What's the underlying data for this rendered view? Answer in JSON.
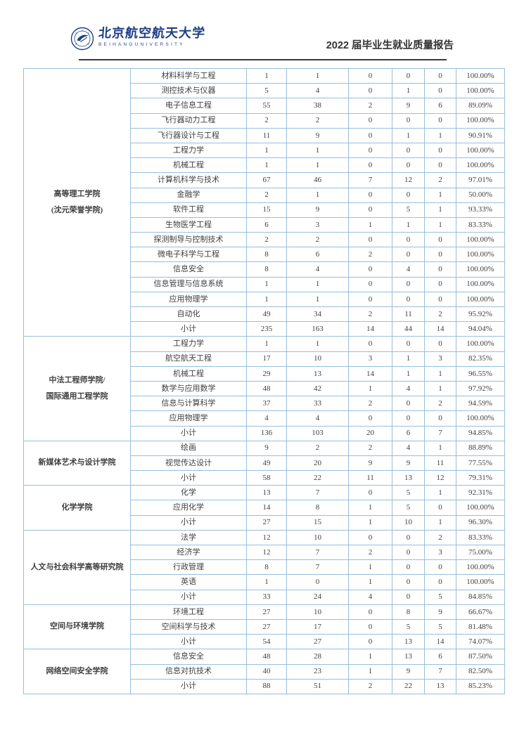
{
  "header": {
    "logo": {
      "cn": "北京航空航天大学",
      "en": "BEIHANGUNIVERSITY"
    },
    "report_title": "2022 届毕业生就业质量报告"
  },
  "colors": {
    "table_border": "#97bedc",
    "table_text": "#3f3f3f",
    "brand_navy": "#1e3e85",
    "header_rule": "#3a3a3a"
  },
  "table": {
    "groups": [
      {
        "college": [
          "高等理工学院",
          "(沈元荣誉学院)"
        ],
        "rows": [
          [
            "材料科学与工程",
            "1",
            "1",
            "0",
            "0",
            "0",
            "100.00%"
          ],
          [
            "测控技术与仪器",
            "5",
            "4",
            "0",
            "1",
            "0",
            "100.00%"
          ],
          [
            "电子信息工程",
            "55",
            "38",
            "2",
            "9",
            "6",
            "89.09%"
          ],
          [
            "飞行器动力工程",
            "2",
            "2",
            "0",
            "0",
            "0",
            "100.00%"
          ],
          [
            "飞行器设计与工程",
            "11",
            "9",
            "0",
            "1",
            "1",
            "90.91%"
          ],
          [
            "工程力学",
            "1",
            "1",
            "0",
            "0",
            "0",
            "100.00%"
          ],
          [
            "机械工程",
            "1",
            "1",
            "0",
            "0",
            "0",
            "100.00%"
          ],
          [
            "计算机科学与技术",
            "67",
            "46",
            "7",
            "12",
            "2",
            "97.01%"
          ],
          [
            "金融学",
            "2",
            "1",
            "0",
            "0",
            "1",
            "50.00%"
          ],
          [
            "软件工程",
            "15",
            "9",
            "0",
            "5",
            "1",
            "93.33%"
          ],
          [
            "生物医学工程",
            "6",
            "3",
            "1",
            "1",
            "1",
            "83.33%"
          ],
          [
            "探测制导与控制技术",
            "2",
            "2",
            "0",
            "0",
            "0",
            "100.00%"
          ],
          [
            "微电子科学与工程",
            "8",
            "6",
            "2",
            "0",
            "0",
            "100.00%"
          ],
          [
            "信息安全",
            "8",
            "4",
            "0",
            "4",
            "0",
            "100.00%"
          ],
          [
            "信息管理与信息系统",
            "1",
            "1",
            "0",
            "0",
            "0",
            "100.00%"
          ],
          [
            "应用物理学",
            "1",
            "1",
            "0",
            "0",
            "0",
            "100.00%"
          ],
          [
            "自动化",
            "49",
            "34",
            "2",
            "11",
            "2",
            "95.92%"
          ],
          [
            "小计",
            "235",
            "163",
            "14",
            "44",
            "14",
            "94.04%"
          ]
        ]
      },
      {
        "college": [
          "中法工程师学院/",
          "国际通用工程学院"
        ],
        "rows": [
          [
            "工程力学",
            "1",
            "1",
            "0",
            "0",
            "0",
            "100.00%"
          ],
          [
            "航空航天工程",
            "17",
            "10",
            "3",
            "1",
            "3",
            "82.35%"
          ],
          [
            "机械工程",
            "29",
            "13",
            "14",
            "1",
            "1",
            "96.55%"
          ],
          [
            "数学与应用数学",
            "48",
            "42",
            "1",
            "4",
            "1",
            "97.92%"
          ],
          [
            "信息与计算科学",
            "37",
            "33",
            "2",
            "0",
            "2",
            "94.59%"
          ],
          [
            "应用物理学",
            "4",
            "4",
            "0",
            "0",
            "0",
            "100.00%"
          ],
          [
            "小计",
            "136",
            "103",
            "20",
            "6",
            "7",
            "94.85%"
          ]
        ]
      },
      {
        "college": [
          "新媒体艺术与设计学院"
        ],
        "rows": [
          [
            "绘画",
            "9",
            "2",
            "2",
            "4",
            "1",
            "88.89%"
          ],
          [
            "视觉传达设计",
            "49",
            "20",
            "9",
            "9",
            "11",
            "77.55%"
          ],
          [
            "小计",
            "58",
            "22",
            "11",
            "13",
            "12",
            "79.31%"
          ]
        ]
      },
      {
        "college": [
          "化学学院"
        ],
        "rows": [
          [
            "化学",
            "13",
            "7",
            "0",
            "5",
            "1",
            "92.31%"
          ],
          [
            "应用化学",
            "14",
            "8",
            "1",
            "5",
            "0",
            "100.00%"
          ],
          [
            "小计",
            "27",
            "15",
            "1",
            "10",
            "1",
            "96.30%"
          ]
        ]
      },
      {
        "college": [
          "人文与社会科学高等研究院"
        ],
        "rows": [
          [
            "法学",
            "12",
            "10",
            "0",
            "0",
            "2",
            "83.33%"
          ],
          [
            "经济学",
            "12",
            "7",
            "2",
            "0",
            "3",
            "75.00%"
          ],
          [
            "行政管理",
            "8",
            "7",
            "1",
            "0",
            "0",
            "100.00%"
          ],
          [
            "英语",
            "1",
            "0",
            "1",
            "0",
            "0",
            "100.00%"
          ],
          [
            "小计",
            "33",
            "24",
            "4",
            "0",
            "5",
            "84.85%"
          ]
        ]
      },
      {
        "college": [
          "空间与环境学院"
        ],
        "rows": [
          [
            "环境工程",
            "27",
            "10",
            "0",
            "8",
            "9",
            "66.67%"
          ],
          [
            "空间科学与技术",
            "27",
            "17",
            "0",
            "5",
            "5",
            "81.48%"
          ],
          [
            "小计",
            "54",
            "27",
            "0",
            "13",
            "14",
            "74.07%"
          ]
        ]
      },
      {
        "college": [
          "网络空间安全学院"
        ],
        "rows": [
          [
            "信息安全",
            "48",
            "28",
            "1",
            "13",
            "6",
            "87.50%"
          ],
          [
            "信息对抗技术",
            "40",
            "23",
            "1",
            "9",
            "7",
            "82.50%"
          ],
          [
            "小计",
            "88",
            "51",
            "2",
            "22",
            "13",
            "85.23%"
          ]
        ]
      }
    ]
  }
}
